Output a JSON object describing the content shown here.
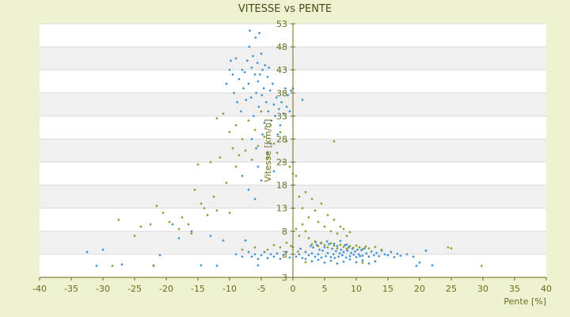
{
  "chart_data": {
    "type": "scatter",
    "title": "VITESSE vs PENTE",
    "xlabel": "Pente [%]",
    "ylabel": "Vitesse [km/h]",
    "xlim": [
      -40,
      40
    ],
    "x_ticks": [
      -40,
      -35,
      -30,
      -25,
      -20,
      -15,
      -10,
      -5,
      0,
      5,
      10,
      15,
      20,
      25,
      30,
      35,
      40
    ],
    "y_tick_labels": [
      "53",
      "48",
      "43",
      "38",
      "33",
      "28",
      "23",
      "18",
      "13",
      "8",
      "3",
      "3"
    ],
    "grid": true,
    "legend": "none",
    "colors": {
      "background": "#eef2d0",
      "band_light": "#ffffff",
      "band_dark": "#f0f0f0",
      "series_blue": "#3a8fd6",
      "series_olive": "#8a9a2a",
      "axis": "#6b6b1e"
    },
    "series": [
      {
        "color_key": "series_blue",
        "points": [
          [
            -32.5,
            5.5
          ],
          [
            -31,
            2.5
          ],
          [
            -30,
            6
          ],
          [
            -27,
            2.8
          ],
          [
            -22,
            2.5
          ],
          [
            -21,
            4.8
          ],
          [
            -19,
            11.5
          ],
          [
            -18,
            8.5
          ],
          [
            -16,
            10
          ],
          [
            -14.5,
            2.6
          ],
          [
            -13,
            9
          ],
          [
            -12,
            2.5
          ],
          [
            -11,
            8
          ],
          [
            -10.5,
            42
          ],
          [
            -10,
            45
          ],
          [
            -9.8,
            47
          ],
          [
            -9.5,
            44
          ],
          [
            -9.3,
            40
          ],
          [
            -9,
            47.5
          ],
          [
            -8.8,
            38
          ],
          [
            -8.5,
            43
          ],
          [
            -8.2,
            36
          ],
          [
            -8,
            45
          ],
          [
            -7.8,
            41
          ],
          [
            -7.6,
            44.5
          ],
          [
            -7.4,
            38.5
          ],
          [
            -7.2,
            47
          ],
          [
            -7,
            42
          ],
          [
            -6.9,
            50
          ],
          [
            -6.8,
            53.5
          ],
          [
            -6.6,
            39
          ],
          [
            -6.5,
            45.5
          ],
          [
            -6.3,
            48
          ],
          [
            -6.2,
            35
          ],
          [
            -6,
            44
          ],
          [
            -5.9,
            52
          ],
          [
            -5.8,
            40
          ],
          [
            -5.6,
            46.5
          ],
          [
            -5.5,
            42.5
          ],
          [
            -5.4,
            37
          ],
          [
            -5.3,
            53
          ],
          [
            -5.2,
            44
          ],
          [
            -5,
            48.5
          ],
          [
            -4.9,
            39.5
          ],
          [
            -4.8,
            45
          ],
          [
            -4.6,
            41
          ],
          [
            -4.5,
            33.5
          ],
          [
            -4.4,
            46
          ],
          [
            -4.2,
            38
          ],
          [
            -4,
            43.5
          ],
          [
            -3.9,
            36
          ],
          [
            -3.8,
            45.5
          ],
          [
            -3.6,
            40.5
          ],
          [
            -3.4,
            34
          ],
          [
            -3.2,
            42
          ],
          [
            -3,
            37.5
          ],
          [
            -2.8,
            35
          ],
          [
            -2.6,
            39
          ],
          [
            -2.4,
            31
          ],
          [
            -2.2,
            36.5
          ],
          [
            -2,
            33
          ],
          [
            -1.8,
            38
          ],
          [
            -1.5,
            35.5
          ],
          [
            -1.2,
            41
          ],
          [
            -1,
            37
          ],
          [
            -0.8,
            39.5
          ],
          [
            -0.5,
            36
          ],
          [
            -0.3,
            40.5
          ],
          [
            0,
            41
          ],
          [
            -8,
            22
          ],
          [
            -7,
            19
          ],
          [
            -6,
            17
          ],
          [
            -5.5,
            24
          ],
          [
            -5,
            21
          ],
          [
            -4,
            27
          ],
          [
            -3,
            23
          ],
          [
            -6.5,
            30
          ],
          [
            -5.8,
            28
          ],
          [
            -4.8,
            31
          ],
          [
            -3.5,
            29
          ],
          [
            1.5,
            38.5
          ],
          [
            -7.5,
            8
          ],
          [
            -6.5,
            4.5
          ],
          [
            -6,
            5
          ],
          [
            -5.5,
            4
          ],
          [
            -5,
            4.8
          ],
          [
            -4.5,
            5.5
          ],
          [
            -4,
            4.2
          ],
          [
            -3.5,
            5
          ],
          [
            -3,
            4.5
          ],
          [
            -2.5,
            5.2
          ],
          [
            -2,
            4
          ],
          [
            -1.5,
            4.8
          ],
          [
            -1,
            5.5
          ],
          [
            -0.5,
            4.3
          ],
          [
            -8,
            4.5
          ],
          [
            -9,
            5
          ],
          [
            -7,
            5.5
          ],
          [
            -5.5,
            2.6
          ],
          [
            0.5,
            4.5
          ],
          [
            1,
            5
          ],
          [
            1.5,
            4.2
          ],
          [
            2,
            5.5
          ],
          [
            2.5,
            4.8
          ],
          [
            3,
            5.2
          ],
          [
            3.2,
            6.5
          ],
          [
            3.5,
            4.5
          ],
          [
            3.8,
            7
          ],
          [
            4,
            5
          ],
          [
            4.2,
            6
          ],
          [
            4.5,
            4.3
          ],
          [
            4.7,
            5.8
          ],
          [
            5,
            6.5
          ],
          [
            5.2,
            4.6
          ],
          [
            5.5,
            5.3
          ],
          [
            5.7,
            7.2
          ],
          [
            6,
            4.4
          ],
          [
            6.2,
            6.2
          ],
          [
            6.4,
            5
          ],
          [
            6.6,
            4.2
          ],
          [
            6.8,
            5.7
          ],
          [
            7,
            6.8
          ],
          [
            7.2,
            4.5
          ],
          [
            7.4,
            5.2
          ],
          [
            7.6,
            6
          ],
          [
            7.8,
            4.8
          ],
          [
            8,
            5.5
          ],
          [
            8.2,
            7
          ],
          [
            8.4,
            4.3
          ],
          [
            8.6,
            5.8
          ],
          [
            8.8,
            6.5
          ],
          [
            9,
            4.6
          ],
          [
            9.2,
            5.3
          ],
          [
            9.4,
            6.2
          ],
          [
            9.6,
            4.9
          ],
          [
            9.8,
            5.6
          ],
          [
            10,
            4.4
          ],
          [
            10.2,
            6
          ],
          [
            10.4,
            5
          ],
          [
            10.6,
            4.6
          ],
          [
            10.8,
            5.9
          ],
          [
            11,
            4.7
          ],
          [
            11.3,
            6.3
          ],
          [
            11.6,
            5.2
          ],
          [
            12,
            4.5
          ],
          [
            12.4,
            5.6
          ],
          [
            12.8,
            4.8
          ],
          [
            13.2,
            5.3
          ],
          [
            13.6,
            4.6
          ],
          [
            14,
            5.8
          ],
          [
            14.5,
            5
          ],
          [
            15,
            4.8
          ],
          [
            15.5,
            5.5
          ],
          [
            16,
            4.4
          ],
          [
            16.5,
            5.1
          ],
          [
            17,
            4.7
          ],
          [
            18,
            5
          ],
          [
            19,
            4.5
          ],
          [
            19.5,
            2.5
          ],
          [
            20,
            3.2
          ],
          [
            21,
            5.8
          ],
          [
            22,
            2.6
          ],
          [
            3,
            3.5
          ],
          [
            4,
            3.8
          ],
          [
            5,
            3.2
          ],
          [
            6,
            3.6
          ],
          [
            7,
            3
          ],
          [
            8,
            3.4
          ],
          [
            9,
            3.9
          ],
          [
            10,
            3.3
          ],
          [
            11,
            3.7
          ],
          [
            12,
            3
          ],
          [
            13,
            3.5
          ],
          [
            2,
            4
          ],
          [
            1.2,
            6.2
          ],
          [
            2.8,
            6.8
          ],
          [
            3.6,
            7.6
          ],
          [
            4.4,
            7.4
          ],
          [
            5.4,
            7.8
          ],
          [
            6.5,
            7.3
          ],
          [
            7.5,
            7.9
          ],
          [
            8.5,
            7.1
          ]
        ]
      },
      {
        "color_key": "series_olive",
        "points": [
          [
            -28.5,
            2.5
          ],
          [
            -27.5,
            12.5
          ],
          [
            -25,
            9
          ],
          [
            -24,
            11
          ],
          [
            -22.5,
            11.5
          ],
          [
            -22,
            2.6
          ],
          [
            -21.5,
            15.5
          ],
          [
            -20.5,
            14
          ],
          [
            -19.5,
            12
          ],
          [
            -18,
            10.5
          ],
          [
            -17.5,
            13
          ],
          [
            -16.5,
            11.5
          ],
          [
            -16,
            9.5
          ],
          [
            -15.5,
            19
          ],
          [
            -15,
            24.5
          ],
          [
            -14.5,
            16
          ],
          [
            -14,
            15
          ],
          [
            -13.5,
            13.5
          ],
          [
            -13,
            25
          ],
          [
            -12.5,
            17.5
          ],
          [
            -12,
            14.5
          ],
          [
            -12,
            34.5
          ],
          [
            -11.5,
            26
          ],
          [
            -11,
            35.5
          ],
          [
            -10.5,
            20.5
          ],
          [
            -10,
            31.5
          ],
          [
            -10,
            14
          ],
          [
            -9.5,
            28
          ],
          [
            -9,
            24
          ],
          [
            -9,
            33
          ],
          [
            -8.5,
            26.5
          ],
          [
            -8,
            30
          ],
          [
            -7.5,
            27.5
          ],
          [
            -7,
            34
          ],
          [
            -6.5,
            25.5
          ],
          [
            -6,
            32
          ],
          [
            -5.5,
            28.5
          ],
          [
            -5,
            36
          ],
          [
            -4.5,
            30.5
          ],
          [
            -4,
            26
          ],
          [
            -3.5,
            33
          ],
          [
            -3,
            29
          ],
          [
            -2.5,
            27
          ],
          [
            -2,
            31.5
          ],
          [
            -1.5,
            25
          ],
          [
            -1,
            29.5
          ],
          [
            -0.5,
            24
          ],
          [
            0,
            22.5
          ],
          [
            -8,
            6
          ],
          [
            -6,
            6.5
          ],
          [
            -4,
            6
          ],
          [
            -3,
            7
          ],
          [
            -2,
            6.5
          ],
          [
            -1,
            7.5
          ],
          [
            0,
            6.5
          ],
          [
            0.5,
            22
          ],
          [
            1,
            17.5
          ],
          [
            1.5,
            15
          ],
          [
            2,
            18.5
          ],
          [
            2.5,
            13
          ],
          [
            3,
            17
          ],
          [
            3.5,
            14.5
          ],
          [
            4,
            12
          ],
          [
            4.5,
            16
          ],
          [
            5,
            11
          ],
          [
            5.5,
            13.5
          ],
          [
            6,
            10
          ],
          [
            6.5,
            29.5
          ],
          [
            6.5,
            12.5
          ],
          [
            7,
            9.5
          ],
          [
            7.5,
            11
          ],
          [
            8,
            10.5
          ],
          [
            8.5,
            9
          ],
          [
            9,
            9.8
          ],
          [
            0.5,
            10.5
          ],
          [
            1,
            9
          ],
          [
            1.5,
            11.5
          ],
          [
            2,
            10
          ],
          [
            2.5,
            8.5
          ],
          [
            3,
            7.2
          ],
          [
            3.5,
            7.8
          ],
          [
            4,
            6.8
          ],
          [
            4.5,
            7.5
          ],
          [
            5,
            7
          ],
          [
            5.5,
            6.5
          ],
          [
            6,
            7.4
          ],
          [
            6.5,
            6.9
          ],
          [
            7,
            6.3
          ],
          [
            7.5,
            7.1
          ],
          [
            8,
            6.6
          ],
          [
            8.5,
            6.2
          ],
          [
            9,
            6.8
          ],
          [
            9.5,
            6.4
          ],
          [
            10,
            6.9
          ],
          [
            10.5,
            6.5
          ],
          [
            11,
            6.1
          ],
          [
            11.5,
            6.7
          ],
          [
            12,
            6.3
          ],
          [
            13,
            6.6
          ],
          [
            14,
            6
          ],
          [
            24.5,
            6.5
          ],
          [
            25,
            6.3
          ],
          [
            29.8,
            2.5
          ],
          [
            11,
            3.2
          ],
          [
            2,
            3.3
          ],
          [
            0.8,
            5.6
          ],
          [
            -0.3,
            6.8
          ]
        ]
      }
    ]
  }
}
